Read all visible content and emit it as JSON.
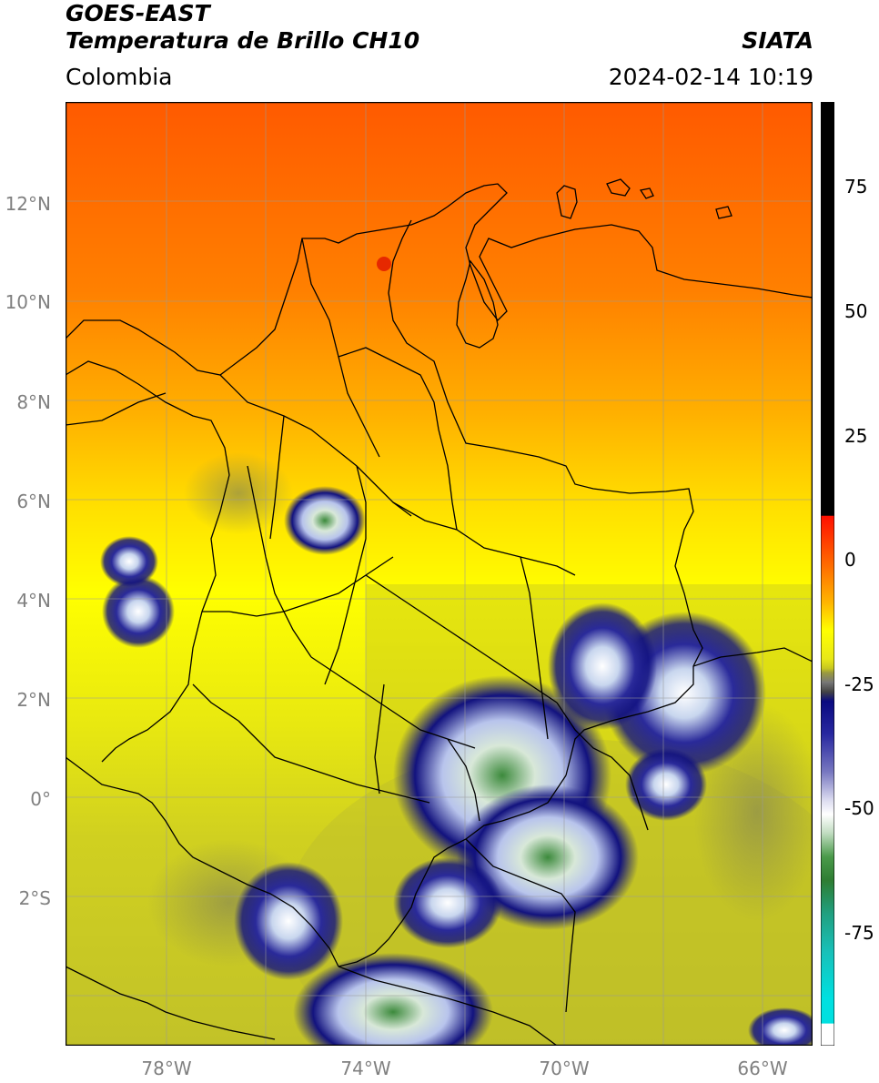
{
  "header": {
    "satellite": "GOES-EAST",
    "product": "Temperatura de Brillo CH10",
    "organization": "SIATA",
    "region": "Colombia",
    "datetime": "2024-02-14 10:19"
  },
  "map": {
    "lon_range": [
      -80,
      -65
    ],
    "lat_range": [
      -5,
      14
    ],
    "lat_ticks": [
      "12°N",
      "10°N",
      "8°N",
      "6°N",
      "4°N",
      "2°N",
      "0°",
      "2°S"
    ],
    "lon_ticks": [
      "78°W",
      "74°W",
      "70°W",
      "66°W"
    ],
    "gridlines": true,
    "borders_color": "#000000"
  },
  "colorbar": {
    "ticks": [
      "75",
      "50",
      "25",
      "0",
      "-25",
      "-50",
      "-75"
    ],
    "colors": {
      "black": "#000000",
      "red": "#ff1a00",
      "orange": "#ff8c00",
      "yellow": "#ffff00",
      "olive": "#c8c820",
      "gray": "#777777",
      "navy": "#0a0a80",
      "white": "#ffffff",
      "green": "#2e7d32",
      "cyan": "#00e0e0"
    }
  }
}
